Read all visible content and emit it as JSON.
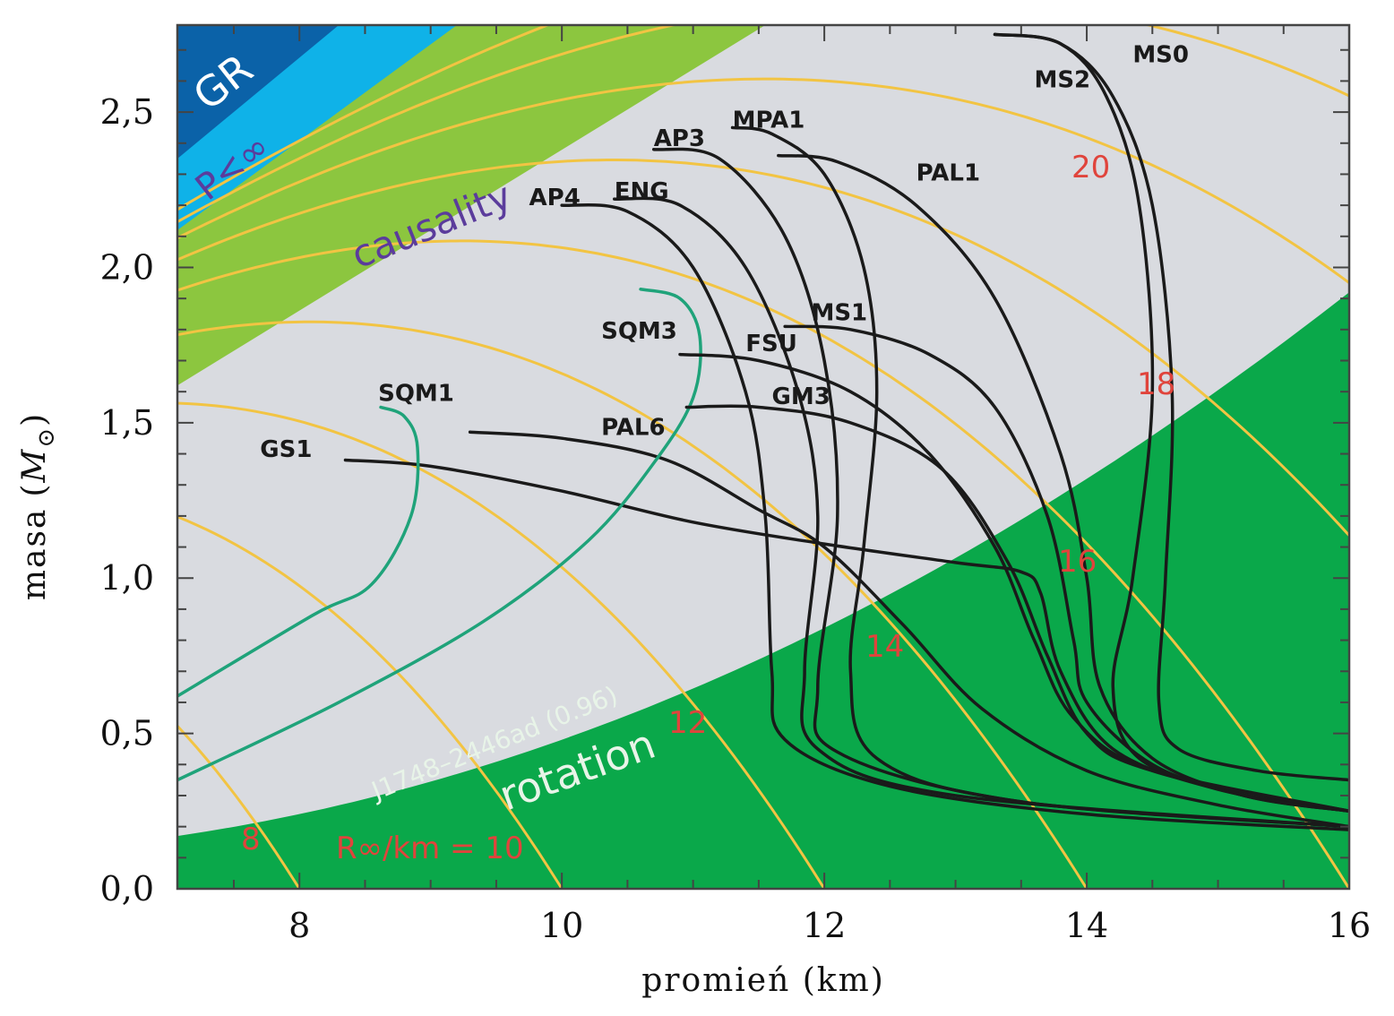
{
  "chart_data": {
    "type": "line",
    "title": "",
    "xlabel": "promień (km)",
    "ylabel": "masa (M☉)",
    "ylabel_base": "masa",
    "ylabel_unit": "M",
    "xlim": [
      7.07,
      16.0
    ],
    "ylim": [
      0.0,
      2.78
    ],
    "xticks": [
      8,
      10,
      12,
      14,
      16
    ],
    "xtick_labels": [
      "8",
      "10",
      "12",
      "14",
      "16"
    ],
    "yticks": [
      0.0,
      0.5,
      1.0,
      1.5,
      2.0,
      2.5
    ],
    "ytick_labels": [
      "0,0",
      "0,5",
      "1,0",
      "1,5",
      "2,0",
      "2,5"
    ],
    "grid": false,
    "background_color": "#d9dbe0",
    "regions": [
      {
        "name": "GR",
        "label": "GR",
        "color": "#0b62a8",
        "label_color": "#ffffff"
      },
      {
        "name": "P<inf",
        "label": "P<∞",
        "color": "#0fb2e8",
        "label_color": "#5b3c9c"
      },
      {
        "name": "causality",
        "label": "causality",
        "color": "#8cc63f",
        "label_color": "#5b3c9c"
      },
      {
        "name": "rotation",
        "label": "rotation",
        "color": "#0aa84a",
        "label_color": "#e8f4e8",
        "annotation": "J1748–2446ad (0.96)"
      }
    ],
    "radius_contours": {
      "color": "#f2c443",
      "label_color": "#e0443c",
      "labels": [
        {
          "text": "8",
          "value": 8
        },
        {
          "text": "R∞/km = 10",
          "value": 10
        },
        {
          "text": "12",
          "value": 12
        },
        {
          "text": "14",
          "value": 14
        },
        {
          "text": "16",
          "value": 16
        },
        {
          "text": "18",
          "value": 18
        },
        {
          "text": "20",
          "value": 20
        }
      ]
    },
    "series": [
      {
        "name": "GS1",
        "type": "hadronic",
        "color": "#1a1a1a",
        "points": [
          [
            8.35,
            1.38
          ],
          [
            9.0,
            1.36
          ],
          [
            10.0,
            1.28
          ],
          [
            11.0,
            1.18
          ],
          [
            12.0,
            1.11
          ],
          [
            13.0,
            1.05
          ],
          [
            13.5,
            1.02
          ],
          [
            13.65,
            0.95
          ],
          [
            13.8,
            0.7
          ],
          [
            14.2,
            0.45
          ],
          [
            15.0,
            0.32
          ],
          [
            16.0,
            0.25
          ]
        ]
      },
      {
        "name": "PAL6",
        "type": "hadronic",
        "color": "#1a1a1a",
        "points": [
          [
            9.3,
            1.47
          ],
          [
            10.0,
            1.45
          ],
          [
            10.8,
            1.38
          ],
          [
            11.5,
            1.22
          ],
          [
            12.0,
            1.1
          ],
          [
            12.6,
            0.85
          ],
          [
            13.2,
            0.58
          ],
          [
            14.0,
            0.38
          ],
          [
            15.0,
            0.27
          ],
          [
            16.0,
            0.2
          ]
        ]
      },
      {
        "name": "SQM1",
        "type": "strange-quark",
        "color": "#1fa37a",
        "points": [
          [
            8.62,
            1.55
          ],
          [
            8.8,
            1.52
          ],
          [
            8.9,
            1.42
          ],
          [
            8.85,
            1.2
          ],
          [
            8.55,
            0.98
          ],
          [
            8.1,
            0.88
          ],
          [
            7.07,
            0.62
          ]
        ]
      },
      {
        "name": "SQM3",
        "type": "strange-quark",
        "color": "#1fa37a",
        "points": [
          [
            10.6,
            1.93
          ],
          [
            10.9,
            1.9
          ],
          [
            11.05,
            1.78
          ],
          [
            11.0,
            1.58
          ],
          [
            10.7,
            1.37
          ],
          [
            10.2,
            1.12
          ],
          [
            9.4,
            0.86
          ],
          [
            8.3,
            0.6
          ],
          [
            7.07,
            0.35
          ]
        ]
      },
      {
        "name": "AP4",
        "type": "hadronic",
        "color": "#1a1a1a",
        "points": [
          [
            10.0,
            2.2
          ],
          [
            10.5,
            2.18
          ],
          [
            11.0,
            2.0
          ],
          [
            11.4,
            1.6
          ],
          [
            11.55,
            1.2
          ],
          [
            11.6,
            0.7
          ],
          [
            11.7,
            0.48
          ],
          [
            12.5,
            0.33
          ],
          [
            14.0,
            0.24
          ],
          [
            16.0,
            0.19
          ]
        ]
      },
      {
        "name": "ENG",
        "type": "hadronic",
        "color": "#1a1a1a",
        "points": [
          [
            10.4,
            2.22
          ],
          [
            10.9,
            2.2
          ],
          [
            11.4,
            2.0
          ],
          [
            11.8,
            1.6
          ],
          [
            11.95,
            1.2
          ],
          [
            11.85,
            0.7
          ],
          [
            11.95,
            0.45
          ],
          [
            13.0,
            0.3
          ],
          [
            16.0,
            0.2
          ]
        ]
      },
      {
        "name": "AP3",
        "type": "hadronic",
        "color": "#1a1a1a",
        "points": [
          [
            10.7,
            2.38
          ],
          [
            11.2,
            2.35
          ],
          [
            11.7,
            2.1
          ],
          [
            12.0,
            1.7
          ],
          [
            12.1,
            1.2
          ],
          [
            11.95,
            0.65
          ],
          [
            12.1,
            0.44
          ],
          [
            13.5,
            0.28
          ],
          [
            16.0,
            0.2
          ]
        ]
      },
      {
        "name": "MPA1",
        "type": "hadronic",
        "color": "#1a1a1a",
        "points": [
          [
            11.3,
            2.45
          ],
          [
            11.6,
            2.43
          ],
          [
            12.0,
            2.3
          ],
          [
            12.3,
            2.0
          ],
          [
            12.4,
            1.6
          ],
          [
            12.3,
            1.1
          ],
          [
            12.2,
            0.7
          ],
          [
            12.4,
            0.42
          ],
          [
            13.5,
            0.28
          ],
          [
            16.0,
            0.2
          ]
        ]
      },
      {
        "name": "PAL1",
        "type": "hadronic",
        "color": "#1a1a1a",
        "points": [
          [
            11.65,
            2.36
          ],
          [
            12.1,
            2.34
          ],
          [
            12.7,
            2.2
          ],
          [
            13.3,
            1.9
          ],
          [
            13.8,
            1.4
          ],
          [
            14.0,
            1.0
          ],
          [
            14.1,
            0.65
          ],
          [
            14.5,
            0.42
          ],
          [
            15.2,
            0.3
          ],
          [
            16.0,
            0.25
          ]
        ]
      },
      {
        "name": "MS0",
        "type": "hadronic",
        "color": "#1a1a1a",
        "points": [
          [
            13.3,
            2.75
          ],
          [
            13.8,
            2.72
          ],
          [
            14.2,
            2.55
          ],
          [
            14.5,
            2.2
          ],
          [
            14.65,
            1.6
          ],
          [
            14.6,
            1.0
          ],
          [
            14.55,
            0.6
          ],
          [
            14.7,
            0.45
          ],
          [
            15.3,
            0.38
          ],
          [
            16.0,
            0.35
          ]
        ]
      },
      {
        "name": "MS2",
        "type": "hadronic",
        "color": "#1a1a1a",
        "points": [
          [
            13.3,
            2.75
          ],
          [
            13.8,
            2.72
          ],
          [
            14.15,
            2.55
          ],
          [
            14.4,
            2.2
          ],
          [
            14.5,
            1.6
          ],
          [
            14.35,
            1.0
          ],
          [
            14.2,
            0.65
          ],
          [
            14.4,
            0.42
          ],
          [
            15.2,
            0.3
          ],
          [
            16.0,
            0.25
          ]
        ]
      },
      {
        "name": "MS1",
        "type": "hadronic",
        "color": "#1a1a1a",
        "points": [
          [
            11.7,
            1.81
          ],
          [
            12.2,
            1.8
          ],
          [
            12.8,
            1.72
          ],
          [
            13.3,
            1.55
          ],
          [
            13.7,
            1.2
          ],
          [
            13.9,
            0.8
          ],
          [
            14.0,
            0.6
          ],
          [
            14.5,
            0.4
          ],
          [
            15.2,
            0.3
          ],
          [
            16.0,
            0.25
          ]
        ]
      },
      {
        "name": "FSU",
        "type": "hadronic",
        "color": "#1a1a1a",
        "points": [
          [
            10.9,
            1.72
          ],
          [
            11.5,
            1.7
          ],
          [
            12.2,
            1.6
          ],
          [
            12.8,
            1.4
          ],
          [
            13.3,
            1.1
          ],
          [
            13.6,
            0.8
          ],
          [
            13.9,
            0.55
          ],
          [
            14.5,
            0.38
          ],
          [
            16.0,
            0.25
          ]
        ]
      },
      {
        "name": "GM3",
        "type": "hadronic",
        "color": "#1a1a1a",
        "points": [
          [
            10.95,
            1.55
          ],
          [
            11.5,
            1.55
          ],
          [
            12.2,
            1.5
          ],
          [
            12.9,
            1.35
          ],
          [
            13.4,
            1.05
          ],
          [
            13.7,
            0.75
          ],
          [
            14.0,
            0.5
          ],
          [
            14.5,
            0.38
          ],
          [
            16.0,
            0.25
          ]
        ]
      }
    ],
    "labels": [
      {
        "text": "GS1",
        "x": 7.7,
        "y": 1.39
      },
      {
        "text": "PAL6",
        "x": 10.3,
        "y": 1.46
      },
      {
        "text": "SQM1",
        "x": 8.6,
        "y": 1.57
      },
      {
        "text": "SQM3",
        "x": 10.3,
        "y": 1.77
      },
      {
        "text": "AP4",
        "x": 9.75,
        "y": 2.2
      },
      {
        "text": "ENG",
        "x": 10.4,
        "y": 2.22
      },
      {
        "text": "AP3",
        "x": 10.7,
        "y": 2.39
      },
      {
        "text": "MPA1",
        "x": 11.3,
        "y": 2.45
      },
      {
        "text": "PAL1",
        "x": 12.7,
        "y": 2.28
      },
      {
        "text": "MS2",
        "x": 13.6,
        "y": 2.58
      },
      {
        "text": "MS0",
        "x": 14.35,
        "y": 2.66
      },
      {
        "text": "MS1",
        "x": 11.9,
        "y": 1.83
      },
      {
        "text": "FSU",
        "x": 11.4,
        "y": 1.73
      },
      {
        "text": "GM3",
        "x": 11.6,
        "y": 1.56
      }
    ]
  }
}
